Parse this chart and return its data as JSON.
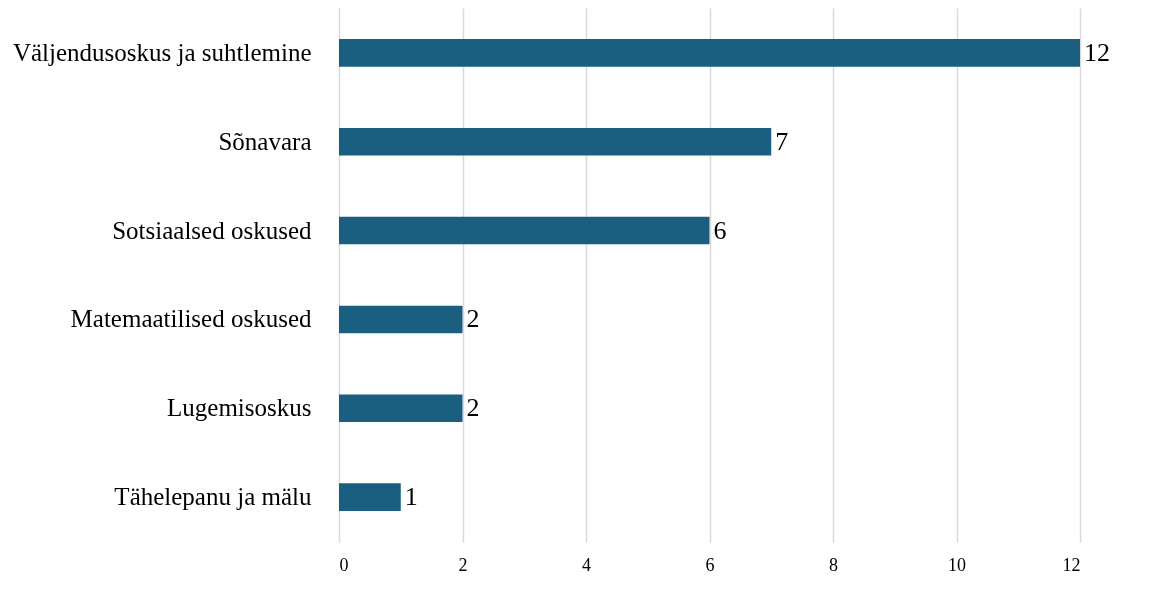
{
  "chart_data": {
    "type": "bar",
    "orientation": "horizontal",
    "categories": [
      "Väljendusoskus ja suhtlemine",
      "Sõnavara",
      "Sotsiaalsed oskused",
      "Matemaatilised oskused",
      "Lugemisoskus",
      "Tähelepanu ja mälu"
    ],
    "values": [
      12,
      7,
      6,
      2,
      2,
      1
    ],
    "color": "#1a5f80",
    "xlim": [
      0,
      12
    ],
    "xticks": [
      0,
      2,
      4,
      6,
      8,
      10,
      12
    ],
    "grid": "x",
    "data_labels": true
  }
}
